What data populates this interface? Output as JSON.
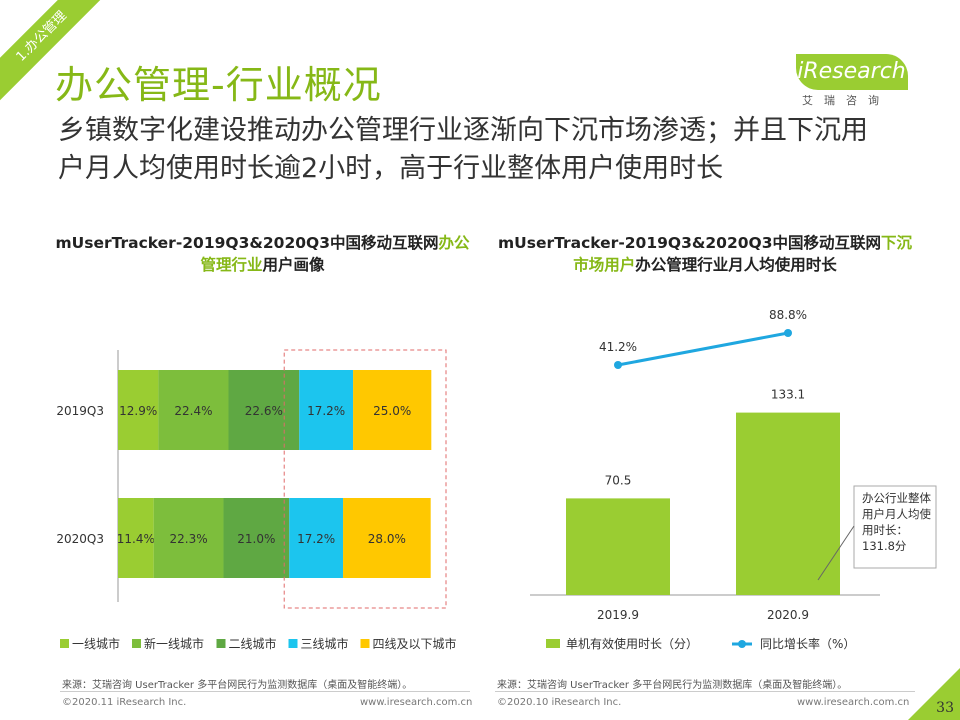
{
  "section_tag": "1.办公管理",
  "page_title": "办公管理-行业概况",
  "subtitle": "乡镇数字化建设推动办公管理行业逐渐向下沉市场渗透；并且下沉用户月人均使用时长逾2小时，高于行业整体用户使用时长",
  "logo": {
    "word": "iResearch",
    "cn": "艾瑞咨询"
  },
  "colors": {
    "brand": "#9ACD32",
    "title_green": "#86B817",
    "line_blue": "#1FA7E0"
  },
  "left_chart": {
    "title_pre": "mUserTracker-2019Q3&2020Q3中国移动互联网",
    "title_hl": "办公管理行业",
    "title_post": "用户画像",
    "source": "来源：艾瑞咨询 UserTracker 多平台网民行为监测数据库（桌面及智能终端）。",
    "footer_left": "©2020.11 iResearch Inc.",
    "footer_right": "www.iresearch.com.cn"
  },
  "right_chart": {
    "title_pre": "mUserTracker-2019Q3&2020Q3中国移动互联网",
    "title_hl": "下沉市场用户",
    "title_post": "办公管理行业月人均使用时长",
    "source": "来源：艾瑞咨询 UserTracker 多平台网民行为监测数据库（桌面及智能终端）。",
    "footer_left": "©2020.10 iResearch Inc.",
    "footer_right": "www.iresearch.com.cn",
    "callout": [
      "办公行业整体",
      "用户月人均使",
      "用时长：",
      "131.8分"
    ]
  },
  "chart_data": [
    {
      "type": "bar",
      "orientation": "horizontal-stacked-100",
      "categories": [
        "2019Q3",
        "2020Q3"
      ],
      "series": [
        {
          "name": "一线城市",
          "color": "#9ACD32",
          "values": [
            12.9,
            11.4
          ]
        },
        {
          "name": "新一线城市",
          "color": "#7DBE3C",
          "values": [
            22.4,
            22.3
          ]
        },
        {
          "name": "二线城市",
          "color": "#5FA843",
          "values": [
            22.6,
            21.0
          ]
        },
        {
          "name": "三线城市",
          "color": "#1CC5EE",
          "values": [
            17.2,
            17.2
          ]
        },
        {
          "name": "四线及以下城市",
          "color": "#FFC800",
          "values": [
            25.0,
            28.0
          ]
        }
      ],
      "value_labels": [
        [
          "12.9%",
          "22.4%",
          "22.6%",
          "17.2%",
          "25.0%"
        ],
        [
          "11.4%",
          "22.3%",
          "21.0%",
          "17.2%",
          "28.0%"
        ]
      ],
      "highlight": "dashed box around 三线城市 and 四线及以下城市"
    },
    {
      "type": "bar+line",
      "categories": [
        "2019.9",
        "2020.9"
      ],
      "series": [
        {
          "name": "单机有效使用时长（分）",
          "kind": "bar",
          "color": "#9ACD32",
          "values": [
            70.5,
            133.1
          ],
          "labels": [
            "70.5",
            "133.1"
          ]
        },
        {
          "name": "同比增长率（%）",
          "kind": "line",
          "color": "#1FA7E0",
          "values": [
            41.2,
            88.8
          ],
          "labels": [
            "41.2%",
            "88.8%"
          ]
        }
      ],
      "reference": {
        "label": "办公行业整体用户月人均使用时长：131.8分",
        "value": 131.8
      }
    }
  ],
  "page_number": "33"
}
